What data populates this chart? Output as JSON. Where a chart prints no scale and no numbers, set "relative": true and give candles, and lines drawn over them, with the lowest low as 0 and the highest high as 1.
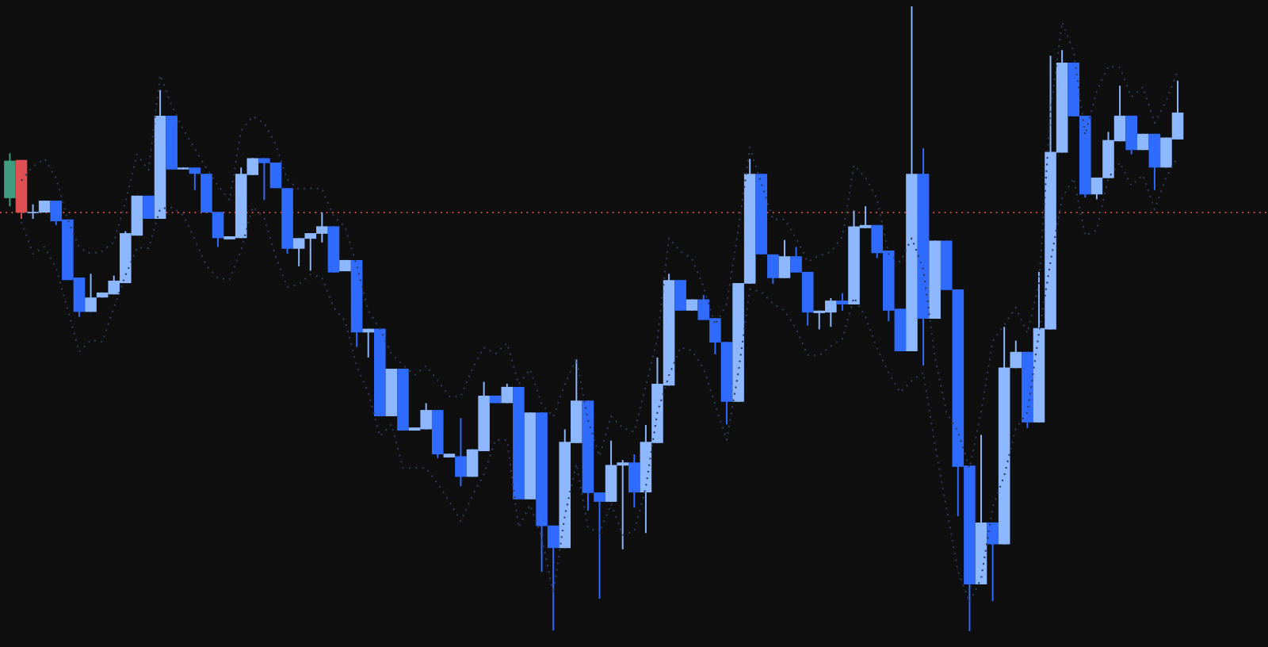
{
  "chart_data": {
    "type": "candlestick",
    "relative": true,
    "categories": [
      null,
      null,
      null,
      null,
      null,
      null,
      null,
      null,
      null,
      null,
      null,
      null,
      null,
      null,
      null,
      null,
      null,
      null,
      null,
      null,
      null,
      null,
      null,
      null,
      null,
      null,
      null,
      null,
      null,
      null,
      null,
      null,
      null,
      null,
      null,
      null,
      null,
      null,
      null,
      null,
      null,
      null,
      null,
      null,
      null,
      null,
      null,
      null,
      null,
      null,
      null,
      null,
      null,
      null,
      null,
      null,
      null,
      null,
      null,
      null,
      null,
      null,
      null,
      null,
      null,
      null,
      null,
      null,
      null,
      null,
      null,
      null,
      null,
      null,
      null,
      null,
      null,
      null,
      null,
      null,
      null,
      null,
      null,
      null,
      null,
      null,
      null,
      null,
      null,
      null,
      null,
      null,
      null,
      null,
      null,
      null,
      null,
      null,
      null,
      null,
      null,
      null
    ],
    "ohlc": [
      [
        0.693,
        0.765,
        0.68,
        0.753
      ],
      [
        0.754,
        0.754,
        0.66,
        0.67
      ],
      [
        0.669,
        0.683,
        0.66,
        0.671
      ],
      [
        0.67,
        0.689,
        0.67,
        0.689
      ],
      [
        0.689,
        0.689,
        0.65,
        0.656
      ],
      [
        0.659,
        0.659,
        0.562,
        0.562
      ],
      [
        0.566,
        0.566,
        0.503,
        0.511
      ],
      [
        0.511,
        0.572,
        0.511,
        0.534
      ],
      [
        0.534,
        0.542,
        0.534,
        0.542
      ],
      [
        0.539,
        0.569,
        0.539,
        0.561
      ],
      [
        0.557,
        0.64,
        0.557,
        0.637
      ],
      [
        0.633,
        0.697,
        0.633,
        0.697
      ],
      [
        0.697,
        0.697,
        0.66,
        0.66
      ],
      [
        0.66,
        0.866,
        0.66,
        0.825
      ],
      [
        0.825,
        0.825,
        0.739,
        0.739
      ],
      [
        0.739,
        0.742,
        0.739,
        0.742
      ],
      [
        0.742,
        0.742,
        0.706,
        0.732
      ],
      [
        0.732,
        0.732,
        0.67,
        0.67
      ],
      [
        0.671,
        0.671,
        0.615,
        0.629
      ],
      [
        0.627,
        0.632,
        0.627,
        0.632
      ],
      [
        0.629,
        0.742,
        0.629,
        0.732
      ],
      [
        0.73,
        0.757,
        0.73,
        0.757
      ],
      [
        0.757,
        0.757,
        0.69,
        0.749
      ],
      [
        0.75,
        0.75,
        0.709,
        0.709
      ],
      [
        0.709,
        0.709,
        0.604,
        0.612
      ],
      [
        0.612,
        0.629,
        0.584,
        0.629
      ],
      [
        0.628,
        0.637,
        0.577,
        0.637
      ],
      [
        0.636,
        0.67,
        0.622,
        0.648
      ],
      [
        0.648,
        0.648,
        0.574,
        0.574
      ],
      [
        0.576,
        0.594,
        0.576,
        0.594
      ],
      [
        0.594,
        0.594,
        0.455,
        0.478
      ],
      [
        0.478,
        0.484,
        0.438,
        0.484
      ],
      [
        0.484,
        0.484,
        0.344,
        0.344
      ],
      [
        0.344,
        0.42,
        0.344,
        0.42
      ],
      [
        0.42,
        0.42,
        0.321,
        0.321
      ],
      [
        0.321,
        0.326,
        0.321,
        0.326
      ],
      [
        0.323,
        0.365,
        0.323,
        0.354
      ],
      [
        0.354,
        0.354,
        0.277,
        0.283
      ],
      [
        0.278,
        0.284,
        0.278,
        0.284
      ],
      [
        0.28,
        0.341,
        0.232,
        0.247
      ],
      [
        0.247,
        0.291,
        0.247,
        0.291
      ],
      [
        0.288,
        0.399,
        0.288,
        0.377
      ],
      [
        0.377,
        0.377,
        0.365,
        0.365
      ],
      [
        0.365,
        0.396,
        0.365,
        0.391
      ],
      [
        0.391,
        0.391,
        0.211,
        0.211
      ],
      [
        0.211,
        0.35,
        0.211,
        0.35
      ],
      [
        0.35,
        0.35,
        0.095,
        0.168
      ],
      [
        0.169,
        0.169,
        0.001,
        0.133
      ],
      [
        0.133,
        0.323,
        0.133,
        0.303
      ],
      [
        0.301,
        0.435,
        0.301,
        0.369
      ],
      [
        0.369,
        0.369,
        0.193,
        0.221
      ],
      [
        0.222,
        0.222,
        0.052,
        0.207
      ],
      [
        0.207,
        0.305,
        0.207,
        0.266
      ],
      [
        0.265,
        0.274,
        0.131,
        0.27
      ],
      [
        0.27,
        0.283,
        0.198,
        0.222
      ],
      [
        0.222,
        0.33,
        0.157,
        0.303
      ],
      [
        0.301,
        0.438,
        0.301,
        0.396
      ],
      [
        0.393,
        0.572,
        0.393,
        0.562
      ],
      [
        0.562,
        0.562,
        0.513,
        0.513
      ],
      [
        0.513,
        0.531,
        0.513,
        0.531
      ],
      [
        0.531,
        0.538,
        0.498,
        0.498
      ],
      [
        0.501,
        0.501,
        0.443,
        0.462
      ],
      [
        0.463,
        0.463,
        0.331,
        0.367
      ],
      [
        0.367,
        0.557,
        0.367,
        0.557
      ],
      [
        0.556,
        0.756,
        0.556,
        0.732
      ],
      [
        0.732,
        0.732,
        0.603,
        0.603
      ],
      [
        0.603,
        0.603,
        0.556,
        0.565
      ],
      [
        0.565,
        0.626,
        0.565,
        0.6
      ],
      [
        0.6,
        0.615,
        0.574,
        0.574
      ],
      [
        0.575,
        0.575,
        0.489,
        0.51
      ],
      [
        0.509,
        0.513,
        0.483,
        0.513
      ],
      [
        0.51,
        0.533,
        0.487,
        0.529
      ],
      [
        0.529,
        0.541,
        0.513,
        0.523
      ],
      [
        0.523,
        0.673,
        0.523,
        0.648
      ],
      [
        0.645,
        0.68,
        0.645,
        0.65
      ],
      [
        0.65,
        0.65,
        0.597,
        0.605
      ],
      [
        0.609,
        0.609,
        0.496,
        0.513
      ],
      [
        0.516,
        0.516,
        0.448,
        0.448
      ],
      [
        0.448,
        1.0,
        0.448,
        0.732
      ],
      [
        0.732,
        0.773,
        0.425,
        0.5
      ],
      [
        0.5,
        0.625,
        0.5,
        0.625
      ],
      [
        0.625,
        0.625,
        0.546,
        0.546
      ],
      [
        0.547,
        0.547,
        0.184,
        0.263
      ],
      [
        0.265,
        0.265,
        0.0,
        0.075
      ],
      [
        0.075,
        0.314,
        0.075,
        0.174
      ],
      [
        0.174,
        0.174,
        0.048,
        0.139
      ],
      [
        0.139,
        0.487,
        0.139,
        0.422
      ],
      [
        0.421,
        0.465,
        0.421,
        0.447
      ],
      [
        0.447,
        0.447,
        0.325,
        0.334
      ],
      [
        0.334,
        0.575,
        0.334,
        0.485
      ],
      [
        0.483,
        0.921,
        0.483,
        0.767
      ],
      [
        0.766,
        0.93,
        0.766,
        0.91
      ],
      [
        0.91,
        0.91,
        0.824,
        0.824
      ],
      [
        0.825,
        0.825,
        0.694,
        0.699
      ],
      [
        0.699,
        0.726,
        0.691,
        0.726
      ],
      [
        0.725,
        0.799,
        0.725,
        0.786
      ],
      [
        0.784,
        0.873,
        0.784,
        0.825
      ],
      [
        0.825,
        0.825,
        0.763,
        0.77
      ],
      [
        0.77,
        0.796,
        0.77,
        0.796
      ],
      [
        0.796,
        0.796,
        0.706,
        0.742
      ],
      [
        0.742,
        0.79,
        0.742,
        0.79
      ],
      [
        0.787,
        0.881,
        0.787,
        0.83
      ]
    ],
    "colors": [
      "#3f9c7e",
      "#e04f52",
      "#8db8ff",
      "#8db8ff",
      "#2f6bff",
      "#2f6bff",
      "#2f6bff",
      "#8db8ff",
      "#8db8ff",
      "#8db8ff",
      "#8db8ff",
      "#8db8ff",
      "#2f6bff",
      "#8db8ff",
      "#2f6bff",
      "#8db8ff",
      "#2f6bff",
      "#2f6bff",
      "#2f6bff",
      "#8db8ff",
      "#8db8ff",
      "#8db8ff",
      "#2f6bff",
      "#2f6bff",
      "#2f6bff",
      "#8db8ff",
      "#8db8ff",
      "#8db8ff",
      "#2f6bff",
      "#8db8ff",
      "#2f6bff",
      "#8db8ff",
      "#2f6bff",
      "#8db8ff",
      "#2f6bff",
      "#8db8ff",
      "#8db8ff",
      "#2f6bff",
      "#8db8ff",
      "#2f6bff",
      "#8db8ff",
      "#8db8ff",
      "#2f6bff",
      "#8db8ff",
      "#2f6bff",
      "#8db8ff",
      "#2f6bff",
      "#2f6bff",
      "#8db8ff",
      "#8db8ff",
      "#2f6bff",
      "#2f6bff",
      "#8db8ff",
      "#8db8ff",
      "#2f6bff",
      "#8db8ff",
      "#8db8ff",
      "#8db8ff",
      "#2f6bff",
      "#8db8ff",
      "#2f6bff",
      "#2f6bff",
      "#2f6bff",
      "#8db8ff",
      "#8db8ff",
      "#2f6bff",
      "#2f6bff",
      "#8db8ff",
      "#2f6bff",
      "#2f6bff",
      "#8db8ff",
      "#8db8ff",
      "#2f6bff",
      "#8db8ff",
      "#8db8ff",
      "#2f6bff",
      "#2f6bff",
      "#2f6bff",
      "#8db8ff",
      "#2f6bff",
      "#8db8ff",
      "#2f6bff",
      "#2f6bff",
      "#2f6bff",
      "#8db8ff",
      "#2f6bff",
      "#8db8ff",
      "#8db8ff",
      "#2f6bff",
      "#8db8ff",
      "#8db8ff",
      "#8db8ff",
      "#2f6bff",
      "#2f6bff",
      "#8db8ff",
      "#8db8ff",
      "#8db8ff",
      "#2f6bff",
      "#8db8ff",
      "#2f6bff",
      "#8db8ff",
      "#8db8ff"
    ],
    "series": [
      {
        "type": "line",
        "color": "#2c3b5c",
        "line_style": "dotted",
        "values": [
          null,
          0.721,
          0.744,
          0.756,
          0.725,
          0.659,
          0.614,
          0.604,
          0.608,
          0.623,
          0.687,
          0.763,
          0.738,
          0.89,
          0.841,
          0.803,
          0.772,
          0.741,
          0.713,
          0.69,
          0.801,
          0.824,
          0.813,
          0.779,
          0.723,
          0.707,
          0.709,
          0.708,
          0.664,
          0.647,
          0.585,
          0.513,
          0.484,
          0.444,
          0.426,
          0.41,
          0.425,
          0.401,
          0.376,
          0.376,
          0.42,
          0.454,
          0.444,
          0.461,
          0.395,
          0.419,
          0.363,
          0.343,
          0.395,
          0.437,
          0.338,
          0.28,
          0.344,
          0.325,
          0.319,
          0.392,
          0.468,
          0.629,
          0.608,
          0.596,
          0.551,
          0.49,
          0.524,
          0.642,
          0.774,
          0.716,
          0.659,
          0.659,
          0.629,
          0.591,
          0.601,
          0.607,
          0.631,
          0.746,
          0.726,
          0.692,
          0.604,
          0.591,
          0.629,
          0.579,
          0.439,
          0.35,
          0.319,
          0.261,
          0.35,
          0.464,
          0.49,
          0.518,
          0.477,
          0.556,
          0.832,
          0.975,
          0.928,
          0.794,
          0.864,
          0.904,
          0.902,
          0.855,
          0.871,
          0.813,
          0.848,
          0.897
        ]
      },
      {
        "type": "line",
        "color": "#2c3b5c",
        "line_style": "dotted",
        "values": [
          null,
          0.655,
          0.604,
          0.615,
          0.581,
          0.515,
          0.447,
          0.466,
          0.463,
          0.518,
          0.569,
          0.614,
          0.613,
          0.676,
          0.678,
          0.666,
          0.627,
          0.585,
          0.565,
          0.563,
          0.61,
          0.679,
          0.662,
          0.599,
          0.551,
          0.555,
          0.571,
          0.566,
          0.518,
          0.496,
          0.424,
          0.382,
          0.312,
          0.331,
          0.261,
          0.261,
          0.261,
          0.236,
          0.208,
          0.176,
          0.217,
          0.251,
          0.306,
          0.306,
          0.166,
          0.202,
          0.151,
          0.06,
          0.185,
          0.268,
          0.166,
          0.157,
          0.204,
          0.154,
          0.16,
          0.23,
          0.35,
          0.409,
          0.454,
          0.449,
          0.42,
          0.363,
          0.306,
          0.414,
          0.547,
          0.543,
          0.524,
          0.513,
          0.484,
          0.442,
          0.441,
          0.456,
          0.468,
          0.534,
          0.503,
          0.452,
          0.414,
          0.382,
          0.401,
          0.414,
          0.299,
          0.198,
          0.096,
          0.046,
          0.084,
          0.198,
          0.249,
          0.325,
          0.35,
          0.477,
          0.591,
          0.693,
          0.725,
          0.633,
          0.642,
          0.725,
          0.75,
          0.713,
          0.73,
          0.675,
          0.726,
          0.759
        ]
      }
    ],
    "ref_lines": [
      {
        "axis": "y",
        "value": 0.67,
        "color": "#e0564a",
        "line_style": "dotted"
      }
    ]
  }
}
